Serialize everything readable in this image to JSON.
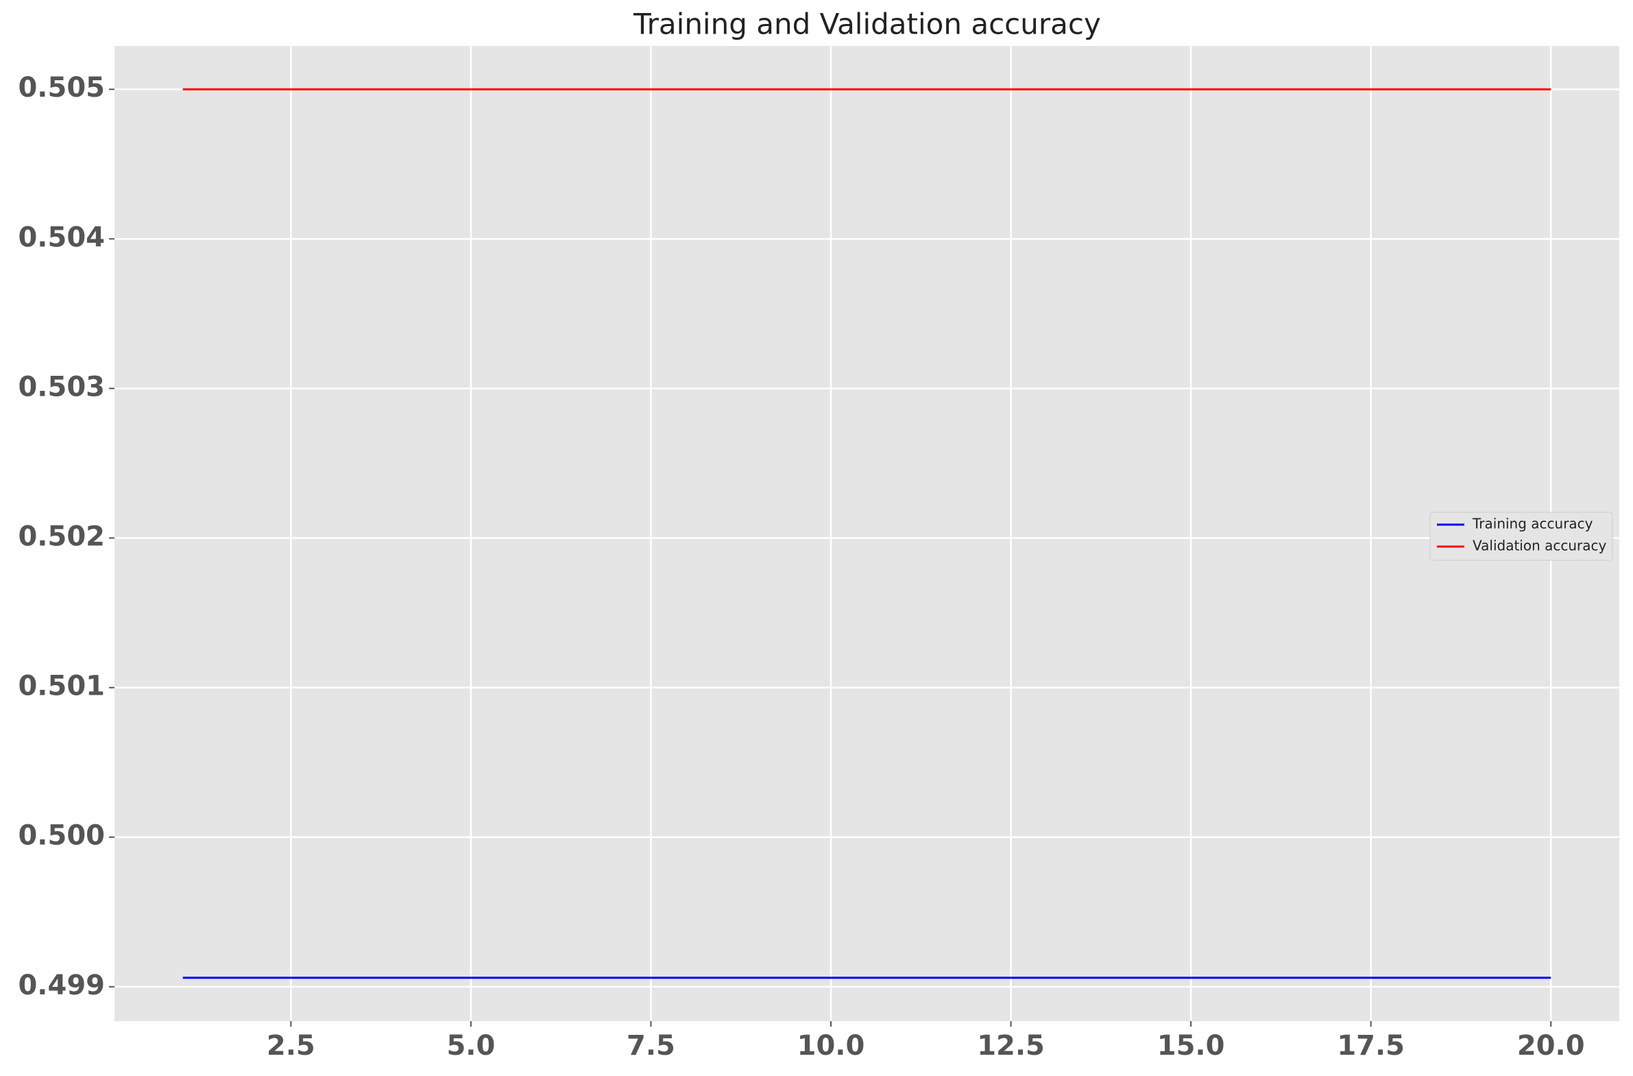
{
  "chart_data": {
    "type": "line",
    "title": "Training and Validation accuracy",
    "x": [
      1,
      2,
      3,
      4,
      5,
      6,
      7,
      8,
      9,
      10,
      11,
      12,
      13,
      14,
      15,
      16,
      17,
      18,
      19,
      20
    ],
    "series": [
      {
        "name": "Training accuracy",
        "color": "#0000ff",
        "values": [
          0.49906,
          0.49906,
          0.49906,
          0.49906,
          0.49906,
          0.49906,
          0.49906,
          0.49906,
          0.49906,
          0.49906,
          0.49906,
          0.49906,
          0.49906,
          0.49906,
          0.49906,
          0.49906,
          0.49906,
          0.49906,
          0.49906,
          0.49906
        ]
      },
      {
        "name": "Validation accuracy",
        "color": "#ff0000",
        "values": [
          0.505,
          0.505,
          0.505,
          0.505,
          0.505,
          0.505,
          0.505,
          0.505,
          0.505,
          0.505,
          0.505,
          0.505,
          0.505,
          0.505,
          0.505,
          0.505,
          0.505,
          0.505,
          0.505,
          0.505
        ]
      }
    ],
    "xlim": [
      0.05,
      20.95
    ],
    "xticks": [
      2.5,
      {
        "value": 5,
        "label": "5.0"
      },
      7.5,
      {
        "value": 10,
        "label": "10.0"
      },
      12.5,
      {
        "value": 15,
        "label": "15.0"
      },
      17.5,
      {
        "value": 20,
        "label": "20.0"
      }
    ],
    "ylim": [
      0.49877,
      0.50529
    ],
    "yticks": [
      0.499,
      {
        "value": 0.5,
        "label": "0.500"
      },
      0.501,
      0.502,
      0.503,
      0.504,
      0.505
    ],
    "grid": true,
    "legend": "center right"
  }
}
